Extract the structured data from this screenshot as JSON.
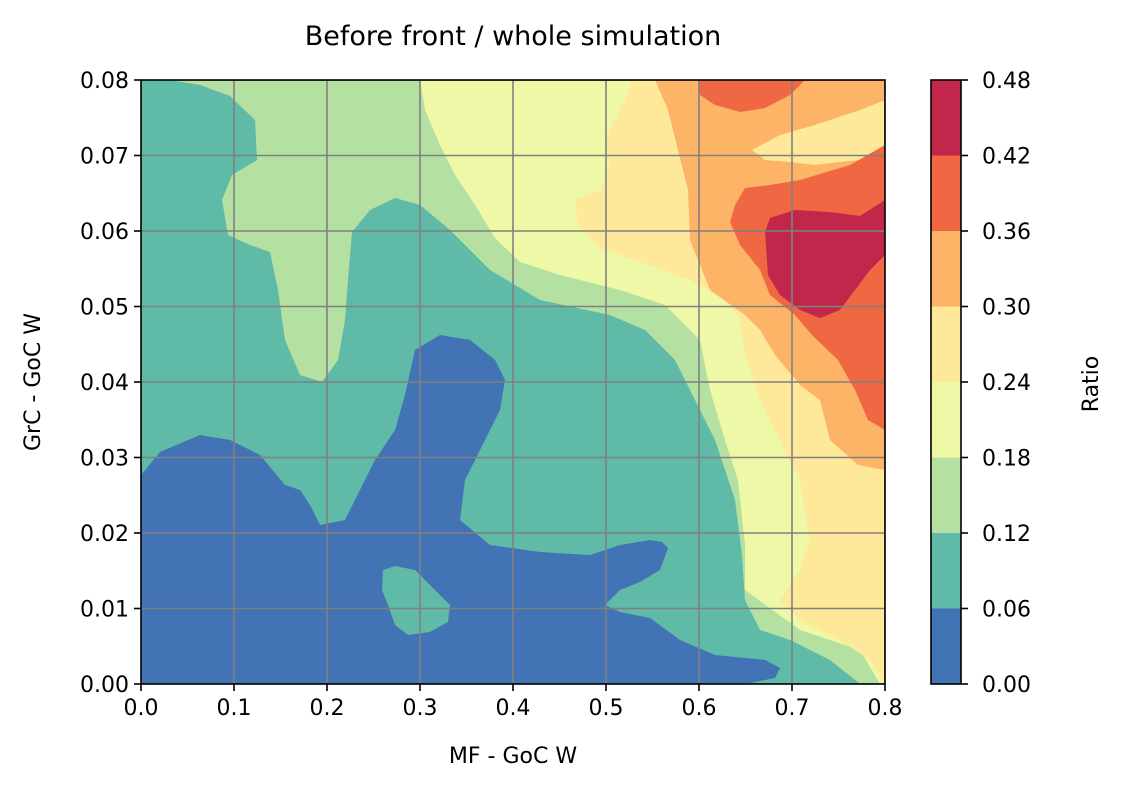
{
  "chart_data": {
    "type": "contour",
    "title": "Before front / whole simulation",
    "xlabel": "MF - GoC W",
    "ylabel": "GrC - GoC W",
    "colorbar_label": "Ratio",
    "xlim": [
      0.0,
      0.8
    ],
    "ylim": [
      0.0,
      0.08
    ],
    "xticks": [
      "0.0",
      "0.1",
      "0.2",
      "0.3",
      "0.4",
      "0.5",
      "0.6",
      "0.7",
      "0.8"
    ],
    "yticks": [
      "0.00",
      "0.01",
      "0.02",
      "0.03",
      "0.04",
      "0.05",
      "0.06",
      "0.07",
      "0.08"
    ],
    "grid": true,
    "levels": [
      0.0,
      0.06,
      0.12,
      0.18,
      0.24,
      0.3,
      0.36,
      0.42,
      0.48
    ],
    "level_labels": [
      "0.00",
      "0.06",
      "0.12",
      "0.18",
      "0.24",
      "0.30",
      "0.36",
      "0.42",
      "0.48"
    ],
    "colors": [
      "#4273b4",
      "#5fbaa8",
      "#b4e0a2",
      "#eff8a6",
      "#fee89a",
      "#fdb466",
      "#f06743",
      "#c1274a"
    ],
    "grid_color": "#808080",
    "colormap": "Spectral_r"
  }
}
